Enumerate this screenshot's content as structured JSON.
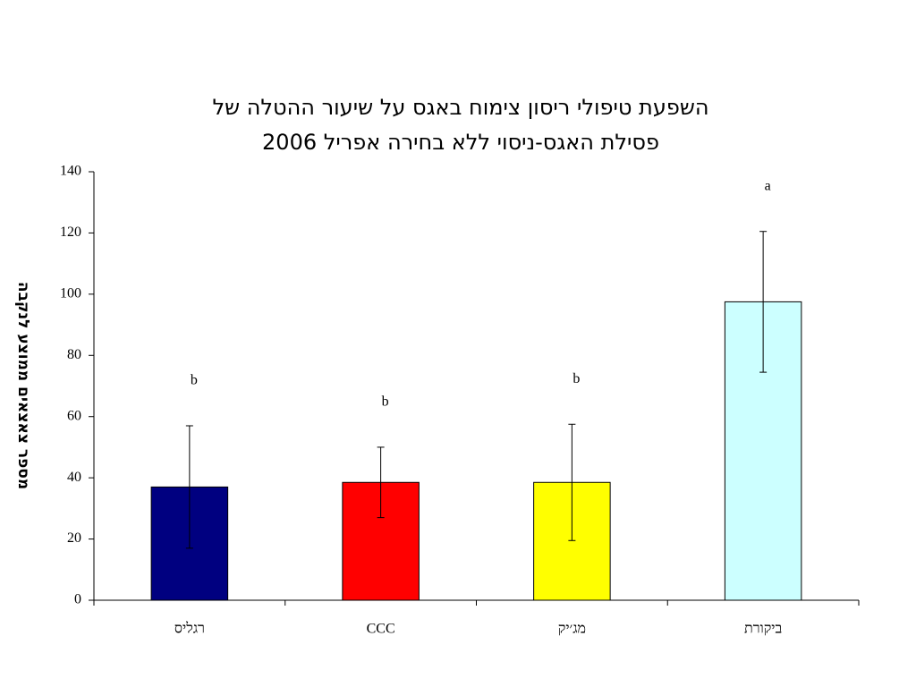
{
  "chart_data": {
    "type": "bar",
    "title": [
      "השפעת טיפולי ריסון צימוח באגס על שיעור ההטלה של",
      "פסילת האגס-ניסוי ללא בחירה אפריל 2006"
    ],
    "y_label": "מספר צאצאים ממוצע לנקבה",
    "categories": [
      "רגליס",
      "CCC",
      "מג׳יק",
      "ביקורת"
    ],
    "values": [
      37,
      38.5,
      38.5,
      97.5
    ],
    "errors": [
      20,
      11.5,
      19,
      23
    ],
    "annotations": [
      "b",
      "b",
      "b",
      "a"
    ],
    "colors": [
      "#000080",
      "#ff0000",
      "#ffff00",
      "#ccffff"
    ],
    "ylim": [
      0,
      140
    ],
    "yticks": [
      0,
      20,
      40,
      60,
      80,
      100,
      120,
      140
    ],
    "grid": false
  }
}
